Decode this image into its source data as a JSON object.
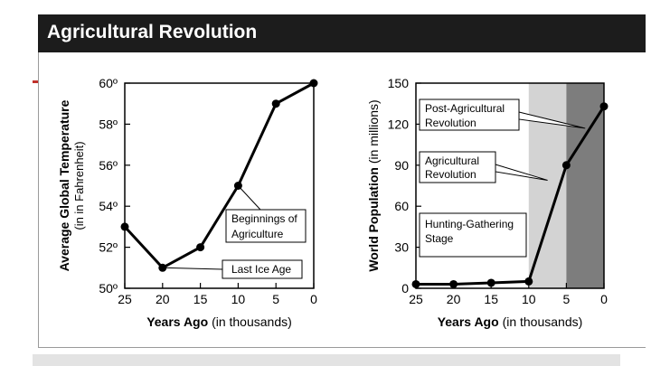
{
  "slide": {
    "title": "Agricultural Revolution"
  },
  "chart_data": [
    {
      "type": "line",
      "title": "",
      "xlabel": "Years Ago",
      "xlabel_suffix": "(in thousands)",
      "ylabel": "Average Global Temperature",
      "ylabel_sub": "(in in Fahrenheit)",
      "x": [
        25,
        20,
        15,
        10,
        5,
        0
      ],
      "values": [
        53,
        51,
        52,
        55,
        59,
        60
      ],
      "xlim": [
        25,
        0
      ],
      "ylim": [
        50,
        60
      ],
      "xticks": [
        "25",
        "20",
        "15",
        "10",
        "5",
        "0"
      ],
      "yticks": [
        "50º",
        "52º",
        "54º",
        "56º",
        "58º",
        "60º"
      ],
      "annotations": [
        {
          "text_lines": [
            "Beginnings of",
            "Agriculture"
          ],
          "x": 10,
          "y": 55
        },
        {
          "text_lines": [
            "Last Ice Age"
          ],
          "x": 20,
          "y": 51
        }
      ]
    },
    {
      "type": "line",
      "title": "",
      "xlabel": "Years Ago",
      "xlabel_suffix": "(in thousands)",
      "ylabel": "World Population",
      "ylabel_sub": "(in millions)",
      "x": [
        25,
        20,
        15,
        10,
        5,
        0
      ],
      "values": [
        3,
        3,
        4,
        5,
        90,
        133
      ],
      "xlim": [
        25,
        0
      ],
      "ylim": [
        0,
        150
      ],
      "xticks": [
        "25",
        "20",
        "15",
        "10",
        "5",
        "0"
      ],
      "yticks": [
        "0",
        "30",
        "60",
        "90",
        "120",
        "150"
      ],
      "shaded_regions": [
        {
          "from": 10,
          "to": 5,
          "color": "#d3d3d3"
        },
        {
          "from": 5,
          "to": 0,
          "color": "#7d7d7d"
        }
      ],
      "annotations": [
        {
          "text_lines": [
            "Post-Agricultural",
            "Revolution"
          ],
          "arrow_to": {
            "x": 2.5,
            "y": 117
          }
        },
        {
          "text_lines": [
            "Agricultural",
            "Revolution"
          ],
          "arrow_to": {
            "x": 7.5,
            "y": 79
          }
        },
        {
          "text_lines": [
            "Hunting-Gathering",
            "Stage"
          ]
        }
      ]
    }
  ]
}
